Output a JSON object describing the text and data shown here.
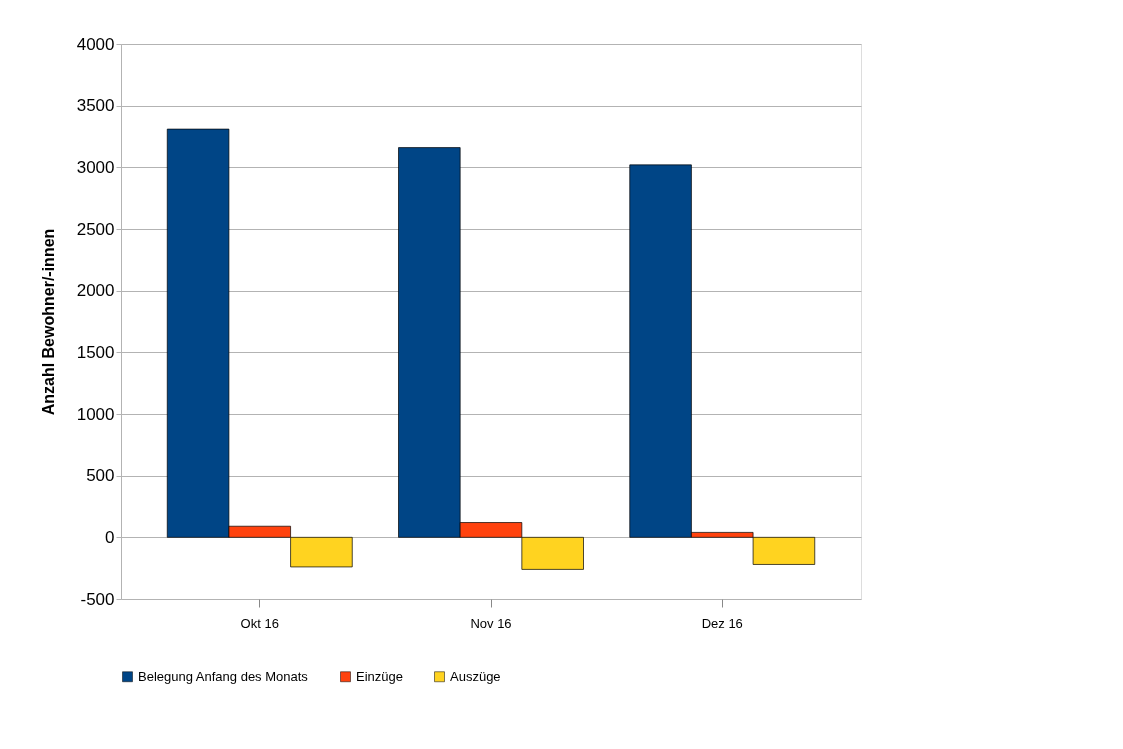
{
  "chart_data": {
    "type": "bar",
    "ylabel": "Anzahl Bewohner/-innen",
    "categories": [
      "Okt 16",
      "Nov 16",
      "Dez 16"
    ],
    "series": [
      {
        "name": "Belegung Anfang des Monats",
        "color": "#004586",
        "values": [
          3310,
          3160,
          3020
        ]
      },
      {
        "name": "Einzüge",
        "color": "#ff420e",
        "values": [
          90,
          120,
          40
        ]
      },
      {
        "name": "Auszüge",
        "color": "#ffd320",
        "values": [
          -240,
          -260,
          -220
        ]
      }
    ],
    "ylim": [
      -500,
      4000
    ],
    "yticks": [
      -500,
      0,
      500,
      1000,
      1500,
      2000,
      2500,
      3000,
      3500,
      4000
    ],
    "grid": "y",
    "legend": "bottom"
  }
}
